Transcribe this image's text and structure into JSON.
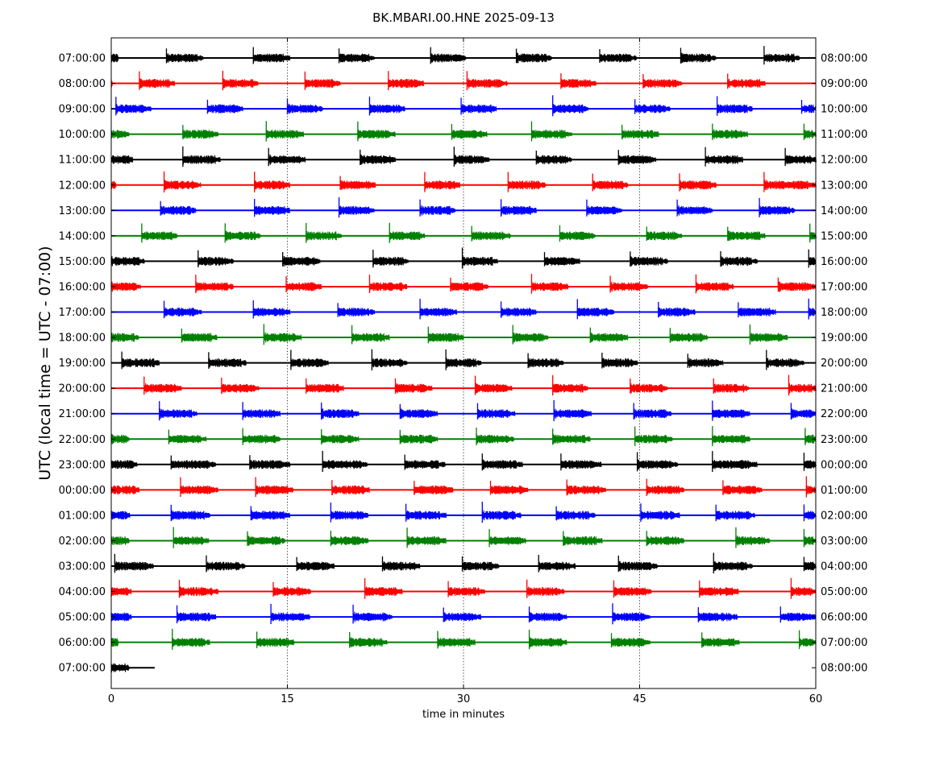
{
  "chart_data": {
    "type": "line",
    "title": "BK.MBARI.00.HNE 2025-09-13",
    "xlabel": "time in minutes",
    "ylabel": "UTC (local time = UTC - 07:00)",
    "xlim": [
      0,
      60
    ],
    "x_ticks": [
      0,
      15,
      30,
      45,
      60
    ],
    "x_tick_labels": [
      "0",
      "15",
      "30",
      "45",
      "60"
    ],
    "grid": "vertical dotted lines at 15, 30, 45",
    "left_tick_labels": [
      "07:00:00",
      "08:00:00",
      "09:00:00",
      "10:00:00",
      "11:00:00",
      "12:00:00",
      "13:00:00",
      "14:00:00",
      "15:00:00",
      "16:00:00",
      "17:00:00",
      "18:00:00",
      "19:00:00",
      "20:00:00",
      "21:00:00",
      "22:00:00",
      "23:00:00",
      "00:00:00",
      "01:00:00",
      "02:00:00",
      "03:00:00",
      "04:00:00",
      "05:00:00",
      "06:00:00",
      "07:00:00"
    ],
    "right_tick_labels": [
      "08:00:00",
      "09:00:00",
      "10:00:00",
      "11:00:00",
      "12:00:00",
      "13:00:00",
      "14:00:00",
      "15:00:00",
      "16:00:00",
      "17:00:00",
      "18:00:00",
      "19:00:00",
      "20:00:00",
      "21:00:00",
      "22:00:00",
      "23:00:00",
      "00:00:00",
      "01:00:00",
      "02:00:00",
      "03:00:00",
      "04:00:00",
      "05:00:00",
      "06:00:00",
      "07:00:00",
      "08:00:00"
    ],
    "color_cycle": [
      "#000000",
      "#ff0000",
      "#0000ff",
      "#008000"
    ],
    "series": [
      {
        "bursts": [
          [
            0,
            0.6
          ],
          [
            4.7,
            7.8
          ],
          [
            12.1,
            15.2
          ],
          [
            19.4,
            22.4
          ],
          [
            27.2,
            30.2
          ],
          [
            34.5,
            37.5
          ],
          [
            41.6,
            44.7
          ],
          [
            48.5,
            51.5
          ],
          [
            55.6,
            58.6
          ]
        ],
        "end": 60
      },
      {
        "bursts": [
          [
            0,
            0.1
          ],
          [
            2.4,
            5.4
          ],
          [
            9.5,
            12.5
          ],
          [
            16.5,
            19.5
          ],
          [
            23.6,
            26.6
          ],
          [
            30.3,
            33.7
          ],
          [
            38.3,
            41.3
          ],
          [
            45.3,
            48.6
          ],
          [
            52.5,
            55.7
          ]
        ],
        "end": 60
      },
      {
        "bursts": [
          [
            0.4,
            3.4
          ],
          [
            8.2,
            11.2
          ],
          [
            15.0,
            18.0
          ],
          [
            22.0,
            25.0
          ],
          [
            29.8,
            32.8
          ],
          [
            37.6,
            40.6
          ],
          [
            44.6,
            47.6
          ],
          [
            51.6,
            54.6
          ],
          [
            58.8,
            60
          ]
        ],
        "end": 60
      },
      {
        "bursts": [
          [
            0,
            1.5
          ],
          [
            6.1,
            9.1
          ],
          [
            13.2,
            16.4
          ],
          [
            21.0,
            24.2
          ],
          [
            29.0,
            32.0
          ],
          [
            35.8,
            39.2
          ],
          [
            43.5,
            46.6
          ],
          [
            51.2,
            54.2
          ],
          [
            59.0,
            60
          ]
        ],
        "end": 60
      },
      {
        "bursts": [
          [
            0,
            1.8
          ],
          [
            6.1,
            9.3
          ],
          [
            13.4,
            16.5
          ],
          [
            21.2,
            24.2
          ],
          [
            29.2,
            32.2
          ],
          [
            36.2,
            39.2
          ],
          [
            43.2,
            46.4
          ],
          [
            50.6,
            53.8
          ],
          [
            57.4,
            60
          ]
        ],
        "end": 60
      },
      {
        "bursts": [
          [
            0,
            0.4
          ],
          [
            4.5,
            7.6
          ],
          [
            12.2,
            15.2
          ],
          [
            19.5,
            22.5
          ],
          [
            26.7,
            29.7
          ],
          [
            33.8,
            37.0
          ],
          [
            41.0,
            44.0
          ],
          [
            48.4,
            51.5
          ],
          [
            55.6,
            60
          ]
        ],
        "end": 60
      },
      {
        "bursts": [
          [
            4.2,
            7.2
          ],
          [
            12.2,
            15.2
          ],
          [
            19.4,
            22.4
          ],
          [
            26.3,
            29.3
          ],
          [
            33.2,
            36.2
          ],
          [
            40.5,
            43.5
          ],
          [
            48.2,
            51.2
          ],
          [
            55.2,
            58.2
          ]
        ],
        "end": 60
      },
      {
        "bursts": [
          [
            2.6,
            5.6
          ],
          [
            9.7,
            12.7
          ],
          [
            16.6,
            19.6
          ],
          [
            23.7,
            26.7
          ],
          [
            30.7,
            34.0
          ],
          [
            38.2,
            41.2
          ],
          [
            45.6,
            48.6
          ],
          [
            52.5,
            55.7
          ],
          [
            59.5,
            60
          ]
        ],
        "end": 60
      },
      {
        "bursts": [
          [
            0,
            2.8
          ],
          [
            7.4,
            10.4
          ],
          [
            14.6,
            17.8
          ],
          [
            22.3,
            25.3
          ],
          [
            29.9,
            32.9
          ],
          [
            36.9,
            39.9
          ],
          [
            44.2,
            47.4
          ],
          [
            51.9,
            55.0
          ],
          [
            59.4,
            60
          ]
        ],
        "end": 60
      },
      {
        "bursts": [
          [
            0,
            2.5
          ],
          [
            7.2,
            10.4
          ],
          [
            14.9,
            17.9
          ],
          [
            22.0,
            25.2
          ],
          [
            28.9,
            32.1
          ],
          [
            35.8,
            38.9
          ],
          [
            42.5,
            45.7
          ],
          [
            49.8,
            53.0
          ],
          [
            56.8,
            60
          ]
        ],
        "end": 60
      },
      {
        "bursts": [
          [
            4.5,
            7.7
          ],
          [
            12.1,
            15.2
          ],
          [
            19.3,
            22.4
          ],
          [
            26.3,
            29.4
          ],
          [
            33.2,
            36.2
          ],
          [
            39.7,
            42.8
          ],
          [
            46.6,
            49.7
          ],
          [
            53.4,
            56.6
          ],
          [
            59.4,
            60
          ]
        ],
        "end": 60
      },
      {
        "bursts": [
          [
            0,
            2.3
          ],
          [
            6.0,
            9.0
          ],
          [
            13.0,
            16.2
          ],
          [
            20.5,
            23.7
          ],
          [
            27.0,
            30.0
          ],
          [
            34.2,
            37.2
          ],
          [
            40.8,
            44.0
          ],
          [
            47.6,
            50.8
          ],
          [
            54.4,
            57.6
          ]
        ],
        "end": 60
      },
      {
        "bursts": [
          [
            0.9,
            4.1
          ],
          [
            8.3,
            11.5
          ],
          [
            15.3,
            18.5
          ],
          [
            22.2,
            25.2
          ],
          [
            28.5,
            31.5
          ],
          [
            35.5,
            38.5
          ],
          [
            41.8,
            44.8
          ],
          [
            49.1,
            52.1
          ],
          [
            55.8,
            59.0
          ]
        ],
        "end": 60
      },
      {
        "bursts": [
          [
            2.8,
            6.0
          ],
          [
            9.4,
            12.6
          ],
          [
            16.6,
            19.8
          ],
          [
            24.2,
            27.3
          ],
          [
            31.0,
            34.1
          ],
          [
            37.6,
            40.6
          ],
          [
            44.2,
            47.4
          ],
          [
            51.3,
            54.3
          ],
          [
            57.7,
            60
          ]
        ],
        "end": 60
      },
      {
        "bursts": [
          [
            4.1,
            7.3
          ],
          [
            11.2,
            14.4
          ],
          [
            17.9,
            21.1
          ],
          [
            24.6,
            27.8
          ],
          [
            31.2,
            34.4
          ],
          [
            37.7,
            40.9
          ],
          [
            44.5,
            47.7
          ],
          [
            51.2,
            54.4
          ],
          [
            57.9,
            60
          ]
        ],
        "end": 60
      },
      {
        "bursts": [
          [
            0,
            1.5
          ],
          [
            4.9,
            8.1
          ],
          [
            11.2,
            14.4
          ],
          [
            17.9,
            21.1
          ],
          [
            24.6,
            27.8
          ],
          [
            31.1,
            34.3
          ],
          [
            37.6,
            40.8
          ],
          [
            44.6,
            47.8
          ],
          [
            51.2,
            54.4
          ],
          [
            59.1,
            60
          ]
        ],
        "end": 60
      },
      {
        "bursts": [
          [
            0,
            2.2
          ],
          [
            5.1,
            8.9
          ],
          [
            11.8,
            15.2
          ],
          [
            18.0,
            21.8
          ],
          [
            25.0,
            28.4
          ],
          [
            31.6,
            35.0
          ],
          [
            38.3,
            41.7
          ],
          [
            44.8,
            48.2
          ],
          [
            51.2,
            55.0
          ],
          [
            59.0,
            60
          ]
        ],
        "end": 60
      },
      {
        "bursts": [
          [
            0,
            2.4
          ],
          [
            5.9,
            9.1
          ],
          [
            12.3,
            15.5
          ],
          [
            18.8,
            22.0
          ],
          [
            25.8,
            29.1
          ],
          [
            32.3,
            35.5
          ],
          [
            38.8,
            42.1
          ],
          [
            45.6,
            48.8
          ],
          [
            52.1,
            55.4
          ],
          [
            59.2,
            60
          ]
        ],
        "end": 60
      },
      {
        "bursts": [
          [
            0,
            1.6
          ],
          [
            5.1,
            8.4
          ],
          [
            11.9,
            15.2
          ],
          [
            18.7,
            21.9
          ],
          [
            25.1,
            28.5
          ],
          [
            31.6,
            34.9
          ],
          [
            37.9,
            41.2
          ],
          [
            45.1,
            48.4
          ],
          [
            51.5,
            54.8
          ],
          [
            59.0,
            60
          ]
        ],
        "end": 60
      },
      {
        "bursts": [
          [
            0,
            1.5
          ],
          [
            5.3,
            8.3
          ],
          [
            11.6,
            14.8
          ],
          [
            18.7,
            21.9
          ],
          [
            25.2,
            28.5
          ],
          [
            32.2,
            35.3
          ],
          [
            38.5,
            41.8
          ],
          [
            45.6,
            48.8
          ],
          [
            53.2,
            56.1
          ],
          [
            59.0,
            60
          ]
        ],
        "end": 60
      },
      {
        "bursts": [
          [
            0.3,
            3.6
          ],
          [
            8.1,
            11.4
          ],
          [
            15.8,
            19.0
          ],
          [
            23.1,
            26.3
          ],
          [
            29.9,
            33.0
          ],
          [
            36.4,
            39.5
          ],
          [
            43.2,
            46.5
          ],
          [
            51.3,
            54.6
          ],
          [
            59.0,
            60
          ]
        ],
        "end": 60
      },
      {
        "bursts": [
          [
            0,
            1.7
          ],
          [
            5.8,
            9.1
          ],
          [
            13.8,
            17.0
          ],
          [
            21.6,
            24.8
          ],
          [
            28.7,
            31.8
          ],
          [
            35.4,
            38.6
          ],
          [
            42.8,
            46.0
          ],
          [
            50.1,
            53.4
          ],
          [
            57.9,
            60
          ]
        ],
        "end": 60
      },
      {
        "bursts": [
          [
            0,
            1.7
          ],
          [
            5.6,
            8.9
          ],
          [
            13.6,
            16.9
          ],
          [
            20.6,
            23.9
          ],
          [
            28.3,
            31.5
          ],
          [
            35.6,
            38.8
          ],
          [
            42.7,
            45.9
          ],
          [
            50.0,
            53.3
          ],
          [
            57.0,
            60
          ]
        ],
        "end": 60
      },
      {
        "bursts": [
          [
            0,
            0.6
          ],
          [
            5.2,
            8.4
          ],
          [
            12.4,
            15.6
          ],
          [
            20.3,
            23.5
          ],
          [
            27.8,
            31.0
          ],
          [
            35.6,
            38.8
          ],
          [
            42.6,
            45.9
          ],
          [
            50.3,
            53.5
          ],
          [
            58.6,
            60
          ]
        ],
        "end": 60
      },
      {
        "bursts": [
          [
            0,
            1.5
          ]
        ],
        "end": 3.7
      }
    ]
  }
}
